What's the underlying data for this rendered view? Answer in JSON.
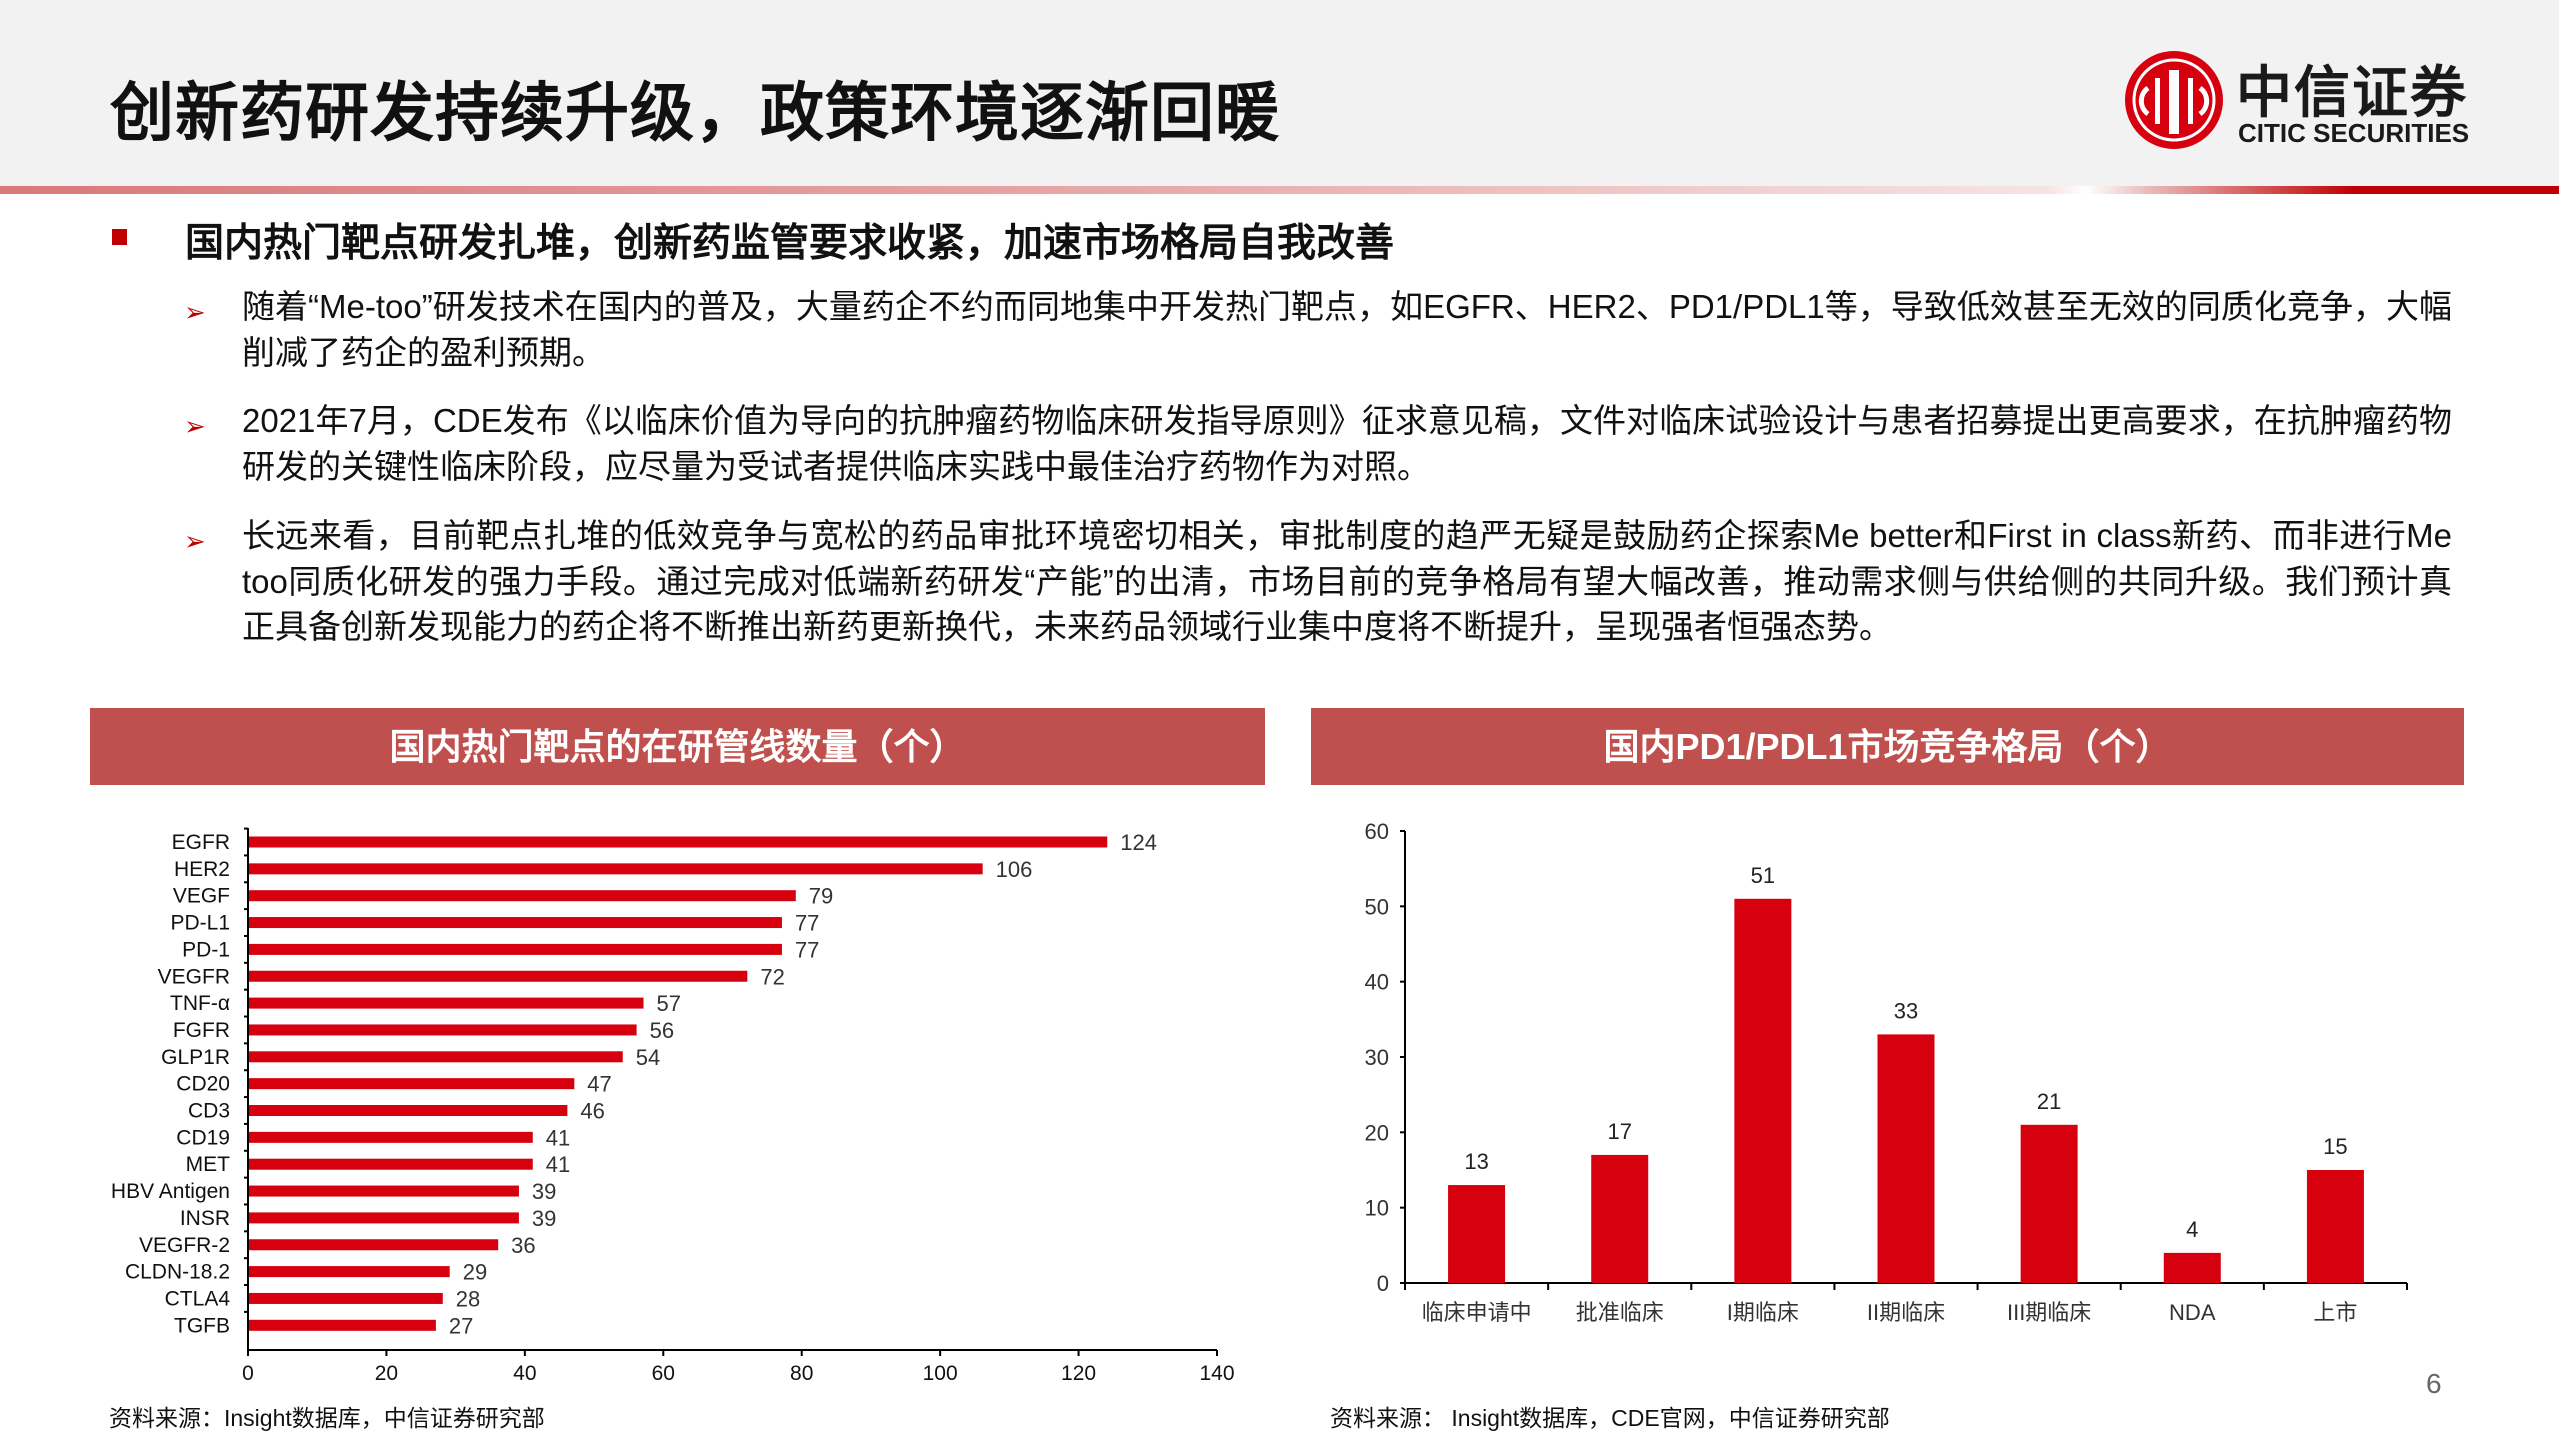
{
  "header": {
    "title": "创新药研发持续升级，政策环境逐渐回暖",
    "logo": {
      "cn": "中信证券",
      "en": "CITIC SECURITIES"
    }
  },
  "section": {
    "heading": "国内热门靶点研发扎堆，创新药监管要求收紧，加速市场格局自我改善",
    "bullets": [
      "随着“Me-too”研发技术在国内的普及，大量药企不约而同地集中开发热门靶点，如EGFR、HER2、PD1/PDL1等，导致低效甚至无效的同质化竞争，大幅削减了药企的盈利预期。",
      "2021年7月，CDE发布《以临床价值为导向的抗肿瘤药物临床研发指导原则》征求意见稿，文件对临床试验设计与患者招募提出更高要求，在抗肿瘤药物研发的关键性临床阶段，应尽量为受试者提供临床实践中最佳治疗药物作为对照。",
      "长远来看，目前靶点扎堆的低效竞争与宽松的药品审批环境密切相关，审批制度的趋严无疑是鼓励药企探索Me better和First in class新药、而非进行Me  too同质化研发的强力手段。通过完成对低端新药研发“产能”的出清，市场目前的竞争格局有望大幅改善，推动需求侧与供给侧的共同升级。我们预计真正具备创新发现能力的药企将不断推出新药更新换代，未来药品领域行业集中度将不断提升，呈现强者恒强态势。"
    ]
  },
  "colors": {
    "bar": "#d7000f",
    "panel": "#c0504d",
    "accent": "#c00000"
  },
  "chart_data": [
    {
      "type": "bar",
      "orientation": "horizontal",
      "title": "国内热门靶点的在研管线数量（个）",
      "categories": [
        "EGFR",
        "HER2",
        "VEGF",
        "PD-L1",
        "PD-1",
        "VEGFR",
        "TNF-α",
        "FGFR",
        "GLP1R",
        "CD20",
        "CD3",
        "CD19",
        "MET",
        "HBV Antigen",
        "INSR",
        "VEGFR-2",
        "CLDN-18.2",
        "CTLA4",
        "TGFB"
      ],
      "values": [
        124,
        106,
        79,
        77,
        77,
        72,
        57,
        56,
        54,
        47,
        46,
        41,
        41,
        39,
        39,
        36,
        29,
        28,
        27
      ],
      "xlim": [
        0,
        140
      ],
      "xticks": [
        0,
        20,
        40,
        60,
        80,
        100,
        120,
        140
      ],
      "grid": false,
      "data_labels": true,
      "source": "资料来源：Insight数据库，中信证券研究部"
    },
    {
      "type": "bar",
      "orientation": "vertical",
      "title": "国内PD1/PDL1市场竞争格局（个）",
      "categories": [
        "临床申请中",
        "批准临床",
        "I期临床",
        "II期临床",
        "III期临床",
        "NDA",
        "上市"
      ],
      "values": [
        13,
        17,
        51,
        33,
        21,
        4,
        15
      ],
      "ylim": [
        0,
        60
      ],
      "yticks": [
        0,
        10,
        20,
        30,
        40,
        50,
        60
      ],
      "grid": false,
      "data_labels": true,
      "source": "资料来源： Insight数据库，CDE官网，中信证券研究部"
    }
  ],
  "page_number": "6"
}
